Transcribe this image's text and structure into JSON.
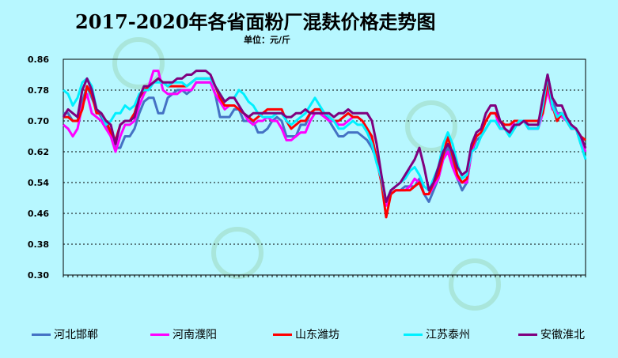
{
  "chart_data": {
    "type": "line",
    "title": "2017-2020年各省面粉厂混麸价格走势图",
    "subtitle": "单位：元/斤",
    "ylim": [
      0.3,
      0.86
    ],
    "yticks": [
      "0.86",
      "0.78",
      "0.70",
      "0.62",
      "0.54",
      "0.46",
      "0.38",
      "0.30"
    ],
    "grid": true,
    "legend_position": "bottom",
    "series": [
      {
        "name": "河北邯郸",
        "color": "#4472c4",
        "values": [
          0.72,
          0.72,
          0.7,
          0.7,
          0.75,
          0.79,
          0.76,
          0.73,
          0.71,
          0.69,
          0.66,
          0.63,
          0.63,
          0.66,
          0.66,
          0.68,
          0.72,
          0.75,
          0.76,
          0.76,
          0.72,
          0.72,
          0.76,
          0.77,
          0.78,
          0.78,
          0.77,
          0.78,
          0.8,
          0.8,
          0.8,
          0.8,
          0.77,
          0.71,
          0.71,
          0.71,
          0.73,
          0.73,
          0.7,
          0.7,
          0.7,
          0.67,
          0.67,
          0.68,
          0.7,
          0.71,
          0.7,
          0.66,
          0.66,
          0.66,
          0.69,
          0.69,
          0.72,
          0.73,
          0.73,
          0.72,
          0.7,
          0.68,
          0.66,
          0.66,
          0.67,
          0.67,
          0.67,
          0.66,
          0.65,
          0.63,
          0.6,
          0.55,
          0.49,
          0.51,
          0.52,
          0.52,
          0.53,
          0.53,
          0.53,
          0.55,
          0.51,
          0.49,
          0.52,
          0.55,
          0.6,
          0.63,
          0.6,
          0.55,
          0.52,
          0.54,
          0.62,
          0.65,
          0.66,
          0.68,
          0.7,
          0.7,
          0.68,
          0.68,
          0.66,
          0.68,
          0.7,
          0.7,
          0.68,
          0.68,
          0.68,
          0.75,
          0.82,
          0.76,
          0.72,
          0.72,
          0.7,
          0.68,
          0.68,
          0.64,
          0.62
        ]
      },
      {
        "name": "河南濮阳",
        "color": "#ff00ff",
        "values": [
          0.69,
          0.68,
          0.66,
          0.68,
          0.74,
          0.77,
          0.72,
          0.71,
          0.7,
          0.68,
          0.66,
          0.62,
          0.66,
          0.69,
          0.69,
          0.7,
          0.74,
          0.77,
          0.79,
          0.83,
          0.83,
          0.78,
          0.77,
          0.77,
          0.77,
          0.78,
          0.78,
          0.78,
          0.8,
          0.8,
          0.8,
          0.8,
          0.77,
          0.75,
          0.73,
          0.74,
          0.74,
          0.73,
          0.72,
          0.7,
          0.69,
          0.7,
          0.7,
          0.71,
          0.7,
          0.7,
          0.68,
          0.65,
          0.65,
          0.66,
          0.67,
          0.67,
          0.7,
          0.72,
          0.72,
          0.71,
          0.7,
          0.7,
          0.69,
          0.69,
          0.7,
          0.71,
          0.71,
          0.7,
          0.68,
          0.65,
          0.6,
          0.54,
          0.48,
          0.51,
          0.52,
          0.52,
          0.52,
          0.53,
          0.55,
          0.54,
          0.51,
          0.51,
          0.53,
          0.55,
          0.6,
          0.62,
          0.58,
          0.55,
          0.54,
          0.54,
          0.62,
          0.66,
          0.67,
          0.7,
          0.72,
          0.72,
          0.68,
          0.68,
          0.67,
          0.7,
          0.7,
          0.7,
          0.68,
          0.68,
          0.68,
          0.72,
          0.78,
          0.73,
          0.72,
          0.71,
          0.7,
          0.68,
          0.68,
          0.65,
          0.62
        ]
      },
      {
        "name": "山东潍坊",
        "color": "#ff0000",
        "values": [
          0.71,
          0.71,
          0.7,
          0.7,
          0.73,
          0.79,
          0.77,
          0.72,
          0.72,
          0.7,
          0.67,
          0.65,
          0.69,
          0.7,
          0.7,
          0.72,
          0.76,
          0.78,
          0.79,
          0.8,
          0.81,
          0.8,
          0.79,
          0.79,
          0.79,
          0.79,
          0.79,
          0.8,
          0.81,
          0.81,
          0.81,
          0.81,
          0.79,
          0.76,
          0.74,
          0.74,
          0.74,
          0.73,
          0.72,
          0.71,
          0.7,
          0.71,
          0.72,
          0.73,
          0.73,
          0.73,
          0.73,
          0.7,
          0.68,
          0.69,
          0.7,
          0.7,
          0.72,
          0.73,
          0.73,
          0.72,
          0.71,
          0.7,
          0.7,
          0.71,
          0.72,
          0.71,
          0.71,
          0.7,
          0.68,
          0.66,
          0.6,
          0.54,
          0.45,
          0.51,
          0.52,
          0.52,
          0.52,
          0.52,
          0.53,
          0.54,
          0.51,
          0.51,
          0.54,
          0.56,
          0.61,
          0.66,
          0.61,
          0.56,
          0.54,
          0.55,
          0.63,
          0.66,
          0.67,
          0.7,
          0.72,
          0.72,
          0.7,
          0.69,
          0.69,
          0.7,
          0.7,
          0.7,
          0.7,
          0.7,
          0.7,
          0.72,
          0.8,
          0.74,
          0.7,
          0.72,
          0.7,
          0.68,
          0.68,
          0.66,
          0.65
        ]
      },
      {
        "name": "江苏泰州",
        "color": "#00f0ff",
        "values": [
          0.78,
          0.77,
          0.74,
          0.76,
          0.8,
          0.81,
          0.79,
          0.73,
          0.72,
          0.69,
          0.7,
          0.72,
          0.72,
          0.74,
          0.73,
          0.74,
          0.77,
          0.78,
          0.78,
          0.8,
          0.8,
          0.8,
          0.79,
          0.8,
          0.8,
          0.8,
          0.79,
          0.8,
          0.81,
          0.81,
          0.81,
          0.81,
          0.79,
          0.77,
          0.75,
          0.76,
          0.76,
          0.78,
          0.77,
          0.75,
          0.74,
          0.72,
          0.71,
          0.71,
          0.71,
          0.72,
          0.72,
          0.7,
          0.69,
          0.7,
          0.71,
          0.72,
          0.74,
          0.76,
          0.74,
          0.72,
          0.71,
          0.7,
          0.68,
          0.68,
          0.69,
          0.7,
          0.69,
          0.69,
          0.67,
          0.64,
          0.59,
          0.55,
          0.49,
          0.52,
          0.53,
          0.54,
          0.55,
          0.57,
          0.58,
          0.56,
          0.53,
          0.52,
          0.55,
          0.58,
          0.64,
          0.67,
          0.64,
          0.59,
          0.55,
          0.56,
          0.62,
          0.63,
          0.66,
          0.68,
          0.7,
          0.7,
          0.68,
          0.68,
          0.66,
          0.68,
          0.7,
          0.7,
          0.68,
          0.68,
          0.68,
          0.74,
          0.82,
          0.74,
          0.71,
          0.72,
          0.7,
          0.68,
          0.68,
          0.64,
          0.6
        ]
      },
      {
        "name": "安徽淮北",
        "color": "#7f007f",
        "values": [
          0.71,
          0.73,
          0.72,
          0.71,
          0.78,
          0.81,
          0.78,
          0.73,
          0.72,
          0.7,
          0.69,
          0.64,
          0.69,
          0.7,
          0.7,
          0.71,
          0.76,
          0.79,
          0.79,
          0.8,
          0.81,
          0.8,
          0.8,
          0.8,
          0.81,
          0.81,
          0.82,
          0.82,
          0.83,
          0.83,
          0.83,
          0.82,
          0.79,
          0.77,
          0.75,
          0.76,
          0.76,
          0.74,
          0.72,
          0.71,
          0.72,
          0.72,
          0.72,
          0.72,
          0.72,
          0.72,
          0.72,
          0.71,
          0.71,
          0.72,
          0.72,
          0.73,
          0.72,
          0.72,
          0.72,
          0.72,
          0.72,
          0.71,
          0.72,
          0.72,
          0.73,
          0.72,
          0.72,
          0.72,
          0.72,
          0.7,
          0.64,
          0.56,
          0.49,
          0.52,
          0.53,
          0.54,
          0.56,
          0.58,
          0.6,
          0.63,
          0.58,
          0.52,
          0.54,
          0.58,
          0.62,
          0.64,
          0.62,
          0.58,
          0.56,
          0.57,
          0.64,
          0.67,
          0.68,
          0.72,
          0.74,
          0.74,
          0.7,
          0.68,
          0.67,
          0.69,
          0.69,
          0.7,
          0.69,
          0.69,
          0.69,
          0.76,
          0.82,
          0.76,
          0.74,
          0.74,
          0.71,
          0.69,
          0.68,
          0.66,
          0.63
        ]
      }
    ]
  }
}
